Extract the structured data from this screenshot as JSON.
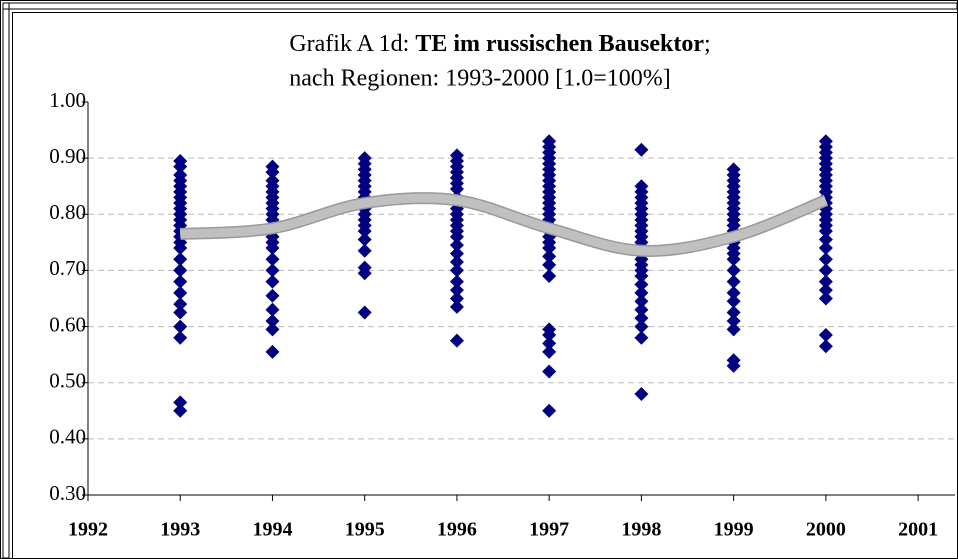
{
  "chart_data": {
    "type": "scatter",
    "title": "Grafik A 1d:",
    "title_bold": "TE im russischen Bausektor",
    "title_end": ";",
    "subtitle": "nach Regionen: 1993-2000 [1.0=100%]",
    "xlim": [
      1992,
      2001.4
    ],
    "xticks": [
      1992,
      1993,
      1994,
      1995,
      1996,
      1997,
      1998,
      1999,
      2000,
      2001
    ],
    "ylim": [
      0.3,
      1.0
    ],
    "yticks": [
      {
        "value": 0.3,
        "label": "0.30"
      },
      {
        "value": 0.4,
        "label": "0.40"
      },
      {
        "value": 0.5,
        "label": "0.50"
      },
      {
        "value": 0.6,
        "label": "0.60"
      },
      {
        "value": 0.7,
        "label": "0.70"
      },
      {
        "value": 0.8,
        "label": "0.80"
      },
      {
        "value": 0.9,
        "label": "0.90"
      },
      {
        "value": 1.0,
        "label": "1.00"
      }
    ],
    "grid": true,
    "series": [
      {
        "color": "#000080",
        "x": [
          1993,
          1993,
          1993,
          1993,
          1993,
          1993,
          1993,
          1993,
          1993,
          1993,
          1993,
          1993,
          1993,
          1993,
          1993,
          1993,
          1993,
          1993,
          1993,
          1993,
          1993,
          1993,
          1993,
          1993,
          1993,
          1993
        ],
        "values": [
          0.895,
          0.885,
          0.87,
          0.86,
          0.85,
          0.84,
          0.83,
          0.82,
          0.81,
          0.8,
          0.79,
          0.78,
          0.77,
          0.76,
          0.75,
          0.74,
          0.72,
          0.7,
          0.68,
          0.66,
          0.64,
          0.625,
          0.6,
          0.58,
          0.465,
          0.45
        ]
      },
      {
        "color": "#000080",
        "x": [
          1994,
          1994,
          1994,
          1994,
          1994,
          1994,
          1994,
          1994,
          1994,
          1994,
          1994,
          1994,
          1994,
          1994,
          1994,
          1994,
          1994,
          1994,
          1994,
          1994,
          1994,
          1994,
          1994
        ],
        "values": [
          0.885,
          0.875,
          0.86,
          0.85,
          0.84,
          0.83,
          0.82,
          0.81,
          0.8,
          0.79,
          0.78,
          0.77,
          0.76,
          0.75,
          0.74,
          0.72,
          0.7,
          0.68,
          0.655,
          0.63,
          0.61,
          0.595,
          0.555
        ]
      },
      {
        "color": "#000080",
        "x": [
          1995,
          1995,
          1995,
          1995,
          1995,
          1995,
          1995,
          1995,
          1995,
          1995,
          1995,
          1995,
          1995,
          1995,
          1995,
          1995,
          1995,
          1995,
          1995
        ],
        "values": [
          0.9,
          0.89,
          0.88,
          0.87,
          0.86,
          0.85,
          0.84,
          0.83,
          0.82,
          0.81,
          0.8,
          0.79,
          0.78,
          0.77,
          0.755,
          0.735,
          0.705,
          0.695,
          0.625
        ]
      },
      {
        "color": "#000080",
        "x": [
          1996,
          1996,
          1996,
          1996,
          1996,
          1996,
          1996,
          1996,
          1996,
          1996,
          1996,
          1996,
          1996,
          1996,
          1996,
          1996,
          1996,
          1996,
          1996,
          1996,
          1996,
          1996,
          1996,
          1996
        ],
        "values": [
          0.905,
          0.895,
          0.885,
          0.875,
          0.865,
          0.855,
          0.845,
          0.83,
          0.82,
          0.81,
          0.8,
          0.79,
          0.78,
          0.77,
          0.76,
          0.745,
          0.73,
          0.715,
          0.7,
          0.68,
          0.665,
          0.65,
          0.635,
          0.575
        ]
      },
      {
        "color": "#000080",
        "x": [
          1997,
          1997,
          1997,
          1997,
          1997,
          1997,
          1997,
          1997,
          1997,
          1997,
          1997,
          1997,
          1997,
          1997,
          1997,
          1997,
          1997,
          1997,
          1997,
          1997,
          1997,
          1997,
          1997,
          1997,
          1997,
          1997,
          1997,
          1997,
          1997
        ],
        "values": [
          0.93,
          0.92,
          0.91,
          0.9,
          0.89,
          0.88,
          0.87,
          0.86,
          0.85,
          0.84,
          0.83,
          0.82,
          0.81,
          0.8,
          0.79,
          0.78,
          0.77,
          0.76,
          0.75,
          0.74,
          0.725,
          0.71,
          0.69,
          0.595,
          0.585,
          0.57,
          0.555,
          0.52,
          0.45
        ]
      },
      {
        "color": "#000080",
        "x": [
          1998,
          1998,
          1998,
          1998,
          1998,
          1998,
          1998,
          1998,
          1998,
          1998,
          1998,
          1998,
          1998,
          1998,
          1998,
          1998,
          1998,
          1998,
          1998,
          1998,
          1998,
          1998,
          1998,
          1998,
          1998,
          1998
        ],
        "values": [
          0.915,
          0.85,
          0.84,
          0.83,
          0.82,
          0.81,
          0.8,
          0.79,
          0.78,
          0.77,
          0.76,
          0.75,
          0.74,
          0.73,
          0.72,
          0.71,
          0.7,
          0.69,
          0.675,
          0.66,
          0.645,
          0.63,
          0.615,
          0.6,
          0.58,
          0.48
        ]
      },
      {
        "color": "#000080",
        "x": [
          1999,
          1999,
          1999,
          1999,
          1999,
          1999,
          1999,
          1999,
          1999,
          1999,
          1999,
          1999,
          1999,
          1999,
          1999,
          1999,
          1999,
          1999,
          1999,
          1999,
          1999,
          1999,
          1999,
          1999,
          1999,
          1999
        ],
        "values": [
          0.88,
          0.87,
          0.86,
          0.85,
          0.84,
          0.83,
          0.82,
          0.81,
          0.8,
          0.79,
          0.78,
          0.77,
          0.76,
          0.75,
          0.74,
          0.73,
          0.72,
          0.7,
          0.68,
          0.66,
          0.645,
          0.625,
          0.61,
          0.595,
          0.54,
          0.53
        ]
      },
      {
        "color": "#000080",
        "x": [
          2000,
          2000,
          2000,
          2000,
          2000,
          2000,
          2000,
          2000,
          2000,
          2000,
          2000,
          2000,
          2000,
          2000,
          2000,
          2000,
          2000,
          2000,
          2000,
          2000,
          2000,
          2000,
          2000,
          2000,
          2000,
          2000
        ],
        "values": [
          0.93,
          0.92,
          0.91,
          0.9,
          0.89,
          0.88,
          0.87,
          0.86,
          0.85,
          0.84,
          0.83,
          0.82,
          0.81,
          0.8,
          0.79,
          0.78,
          0.77,
          0.755,
          0.74,
          0.72,
          0.7,
          0.68,
          0.665,
          0.65,
          0.585,
          0.565
        ]
      }
    ],
    "trend": {
      "color": "#c0c0c0",
      "x": [
        1993,
        1994,
        1995,
        1996,
        1997,
        1998,
        1999,
        2000
      ],
      "values": [
        0.765,
        0.775,
        0.82,
        0.825,
        0.775,
        0.735,
        0.76,
        0.825
      ]
    }
  }
}
